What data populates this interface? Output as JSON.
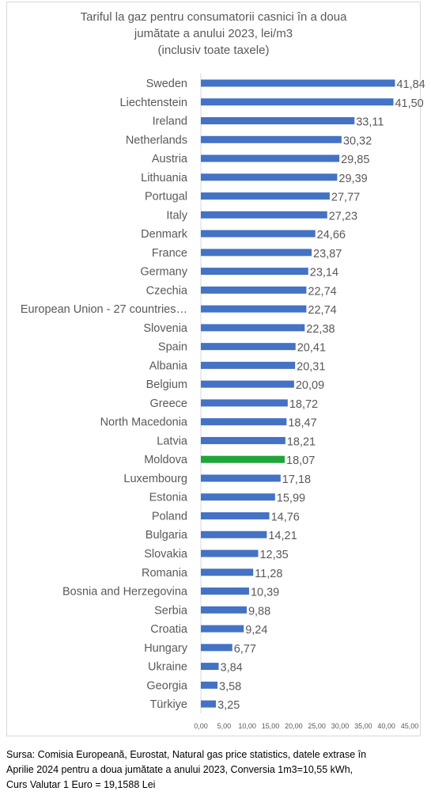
{
  "title_lines": [
    "Tariful la gaz pentru consumatorii casnici în a doua",
    "jumătate a anului 2023, lei/m3",
    "(inclusiv toate taxele)"
  ],
  "source_lines": [
    "Sursa: Comisia Europeană, Eurostat, Natural gas price statistics, datele extrase în",
    "Aprilie 2024 pentru a doua jumătate a anului 2023, Conversia 1m3=10,55 kWh,",
    "Curs Valutar 1 Euro = 19,1588 Lei"
  ],
  "colors": {
    "bar": "#4472C4",
    "highlight": "#1FA53A",
    "text": "#595959",
    "grid": "#d9d9d9"
  },
  "chart_data": {
    "type": "bar",
    "orientation": "horizontal",
    "title": "Tariful la gaz pentru consumatorii casnici în a doua jumătate a anului 2023, lei/m3 (inclusiv toate taxele)",
    "categories": [
      "Sweden",
      "Liechtenstein",
      "Ireland",
      "Netherlands",
      "Austria",
      "Lithuania",
      "Portugal",
      "Italy",
      "Denmark",
      "France",
      "Germany",
      "Czechia",
      "European Union - 27 countries…",
      "Slovenia",
      "Spain",
      "Albania",
      "Belgium",
      "Greece",
      "North Macedonia",
      "Latvia",
      "Moldova",
      "Luxembourg",
      "Estonia",
      "Poland",
      "Bulgaria",
      "Slovakia",
      "Romania",
      "Bosnia and Herzegovina",
      "Serbia",
      "Croatia",
      "Hungary",
      "Ukraine",
      "Georgia",
      "Türkiye"
    ],
    "values": [
      41.84,
      41.5,
      33.11,
      30.32,
      29.85,
      29.39,
      27.77,
      27.23,
      24.66,
      23.87,
      23.14,
      22.74,
      22.74,
      22.38,
      20.41,
      20.31,
      20.09,
      18.72,
      18.47,
      18.21,
      18.07,
      17.18,
      15.99,
      14.76,
      14.21,
      12.35,
      11.28,
      10.39,
      9.88,
      9.24,
      6.77,
      3.84,
      3.58,
      3.25
    ],
    "value_labels": [
      "41,84",
      "41,50",
      "33,11",
      "30,32",
      "29,85",
      "29,39",
      "27,77",
      "27,23",
      "24,66",
      "23,87",
      "23,14",
      "22,74",
      "22,74",
      "22,38",
      "20,41",
      "20,31",
      "20,09",
      "18,72",
      "18,47",
      "18,21",
      "18,07",
      "17,18",
      "15,99",
      "14,76",
      "14,21",
      "12,35",
      "11,28",
      "10,39",
      "9,88",
      "9,24",
      "6,77",
      "3,84",
      "3,58",
      "3,25"
    ],
    "highlight": "Moldova",
    "xlim": [
      0,
      45
    ],
    "xticks": [
      0,
      5,
      10,
      15,
      20,
      25,
      30,
      35,
      40,
      45
    ],
    "xtick_labels": [
      "0,00",
      "5,00",
      "10,00",
      "15,00",
      "20,00",
      "25,00",
      "30,00",
      "35,00",
      "40,00",
      "45,00"
    ],
    "xlabel": "",
    "ylabel": "",
    "grid": false,
    "legend": "none"
  }
}
